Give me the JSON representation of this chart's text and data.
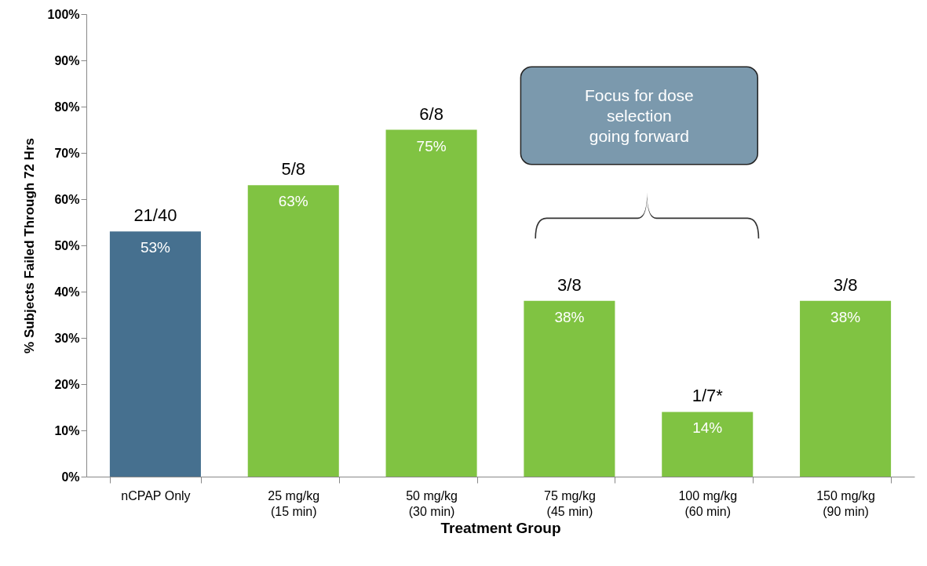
{
  "chart_data": {
    "type": "bar",
    "xlabel": "Treatment Group",
    "ylabel": "% Subjects Failed Through 72 Hrs",
    "categories": [
      "nCPAP Only",
      "25 mg/kg\n(15 min)",
      "50 mg/kg\n(30 min)",
      "75 mg/kg\n(45 min)",
      "100 mg/kg\n(60 min)",
      "150 mg/kg\n(90 min)"
    ],
    "values": [
      53,
      63,
      75,
      38,
      14,
      38
    ],
    "value_labels": [
      "53%",
      "63%",
      "75%",
      "38%",
      "14%",
      "38%"
    ],
    "colors": [
      "#46708f",
      "#80c342",
      "#80c342",
      "#80c342",
      "#80c342",
      "#80c342"
    ],
    "ylim": [
      0,
      100
    ],
    "yticks": [
      {
        "value": 0,
        "label": "0%"
      },
      {
        "value": 10,
        "label": "10%"
      },
      {
        "value": 20,
        "label": "20%"
      },
      {
        "value": 30,
        "label": "30%"
      },
      {
        "value": 40,
        "label": "40%"
      },
      {
        "value": 50,
        "label": "50%"
      },
      {
        "value": 60,
        "label": "60%"
      },
      {
        "value": 70,
        "label": "70%"
      },
      {
        "value": 80,
        "label": "80%"
      },
      {
        "value": 90,
        "label": "90%"
      },
      {
        "value": 100,
        "label": "100%"
      }
    ],
    "grid": false,
    "annotations": [
      {
        "text": "21/40",
        "x": "nCPAP Only",
        "y": 53
      },
      {
        "text": "5/8",
        "x": "25 mg/kg\n(15 min)",
        "y": 63
      },
      {
        "text": "6/8",
        "x": "50 mg/kg\n(30 min)",
        "y": 75
      },
      {
        "text": "3/8",
        "x": "75 mg/kg\n(45 min)",
        "y": 38
      },
      {
        "text": "1/7*",
        "x": "100 mg/kg\n(60 min)",
        "y": 14
      },
      {
        "text": "3/8",
        "x": "150 mg/kg\n(90 min)",
        "y": 38
      },
      "Focus for dose selection going forward"
    ]
  }
}
